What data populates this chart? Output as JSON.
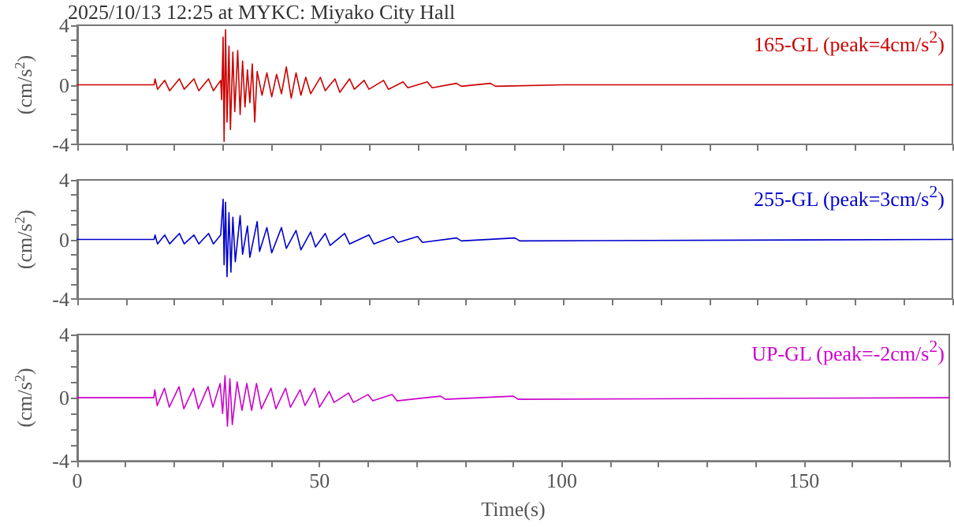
{
  "chart_data": [
    {
      "type": "line",
      "title": "2025/10/13 12:25 at MYKC: Miyako City Hall",
      "ylabel": "(cm/s$^{2}$)",
      "tick_labels": "y",
      "grid": false,
      "marker": "none",
      "line_style": "solid",
      "xlim": [
        0,
        180
      ],
      "xticks": [
        0,
        {
          "value": 10,
          "label": null
        },
        {
          "value": 20,
          "label": null
        },
        {
          "value": 30,
          "label": null
        },
        {
          "value": 40,
          "label": null
        },
        50,
        {
          "value": 60,
          "label": null
        },
        {
          "value": 70,
          "label": null
        },
        {
          "value": 80,
          "label": null
        },
        {
          "value": 90,
          "label": null
        },
        100,
        {
          "value": 110,
          "label": null
        },
        {
          "value": 120,
          "label": null
        },
        {
          "value": 130,
          "label": null
        },
        {
          "value": 140,
          "label": null
        },
        150,
        {
          "value": 160,
          "label": null
        },
        {
          "value": 170,
          "label": null
        },
        180
      ],
      "ylim": [
        -4,
        4
      ],
      "yticks": [
        -4,
        {
          "value": -3,
          "label": null
        },
        {
          "value": -2,
          "label": null
        },
        {
          "value": -1,
          "label": null
        },
        0,
        {
          "value": 1,
          "label": null
        },
        {
          "value": 2,
          "label": null
        },
        {
          "value": 3,
          "label": null
        },
        4
      ],
      "x": [
        0,
        15.8,
        16,
        16.5,
        18,
        19,
        21,
        22,
        24,
        25,
        27,
        28,
        29.5,
        29.7,
        30,
        30.2,
        30.5,
        30.8,
        31.2,
        31.5,
        32,
        32.4,
        33,
        33.5,
        34,
        34.5,
        35,
        35.5,
        36,
        36.5,
        37,
        38,
        39,
        40,
        41,
        42,
        43,
        44,
        45,
        46,
        47,
        48,
        50,
        51,
        53,
        54,
        56,
        57,
        59,
        60,
        63,
        64,
        67,
        68,
        72,
        73,
        78,
        79,
        85,
        86,
        100,
        101,
        130,
        131,
        180
      ],
      "series": [
        {
          "name": "165-GL (peak=4cm/s$^{2}$)",
          "color": "#cc0000",
          "values": [
            0,
            0,
            0.4,
            -0.3,
            0.3,
            -0.4,
            0.4,
            -0.3,
            0.4,
            -0.4,
            0.4,
            -0.4,
            0.3,
            -1.0,
            3.2,
            -3.8,
            3.7,
            -2.5,
            2.6,
            -3.0,
            2.2,
            -1.8,
            2.3,
            -2.0,
            1.6,
            -1.5,
            1.0,
            -1.2,
            1.4,
            -2.5,
            0.9,
            -0.7,
            0.8,
            -0.8,
            0.7,
            -0.6,
            1.2,
            -0.9,
            0.8,
            -0.7,
            0.5,
            -0.6,
            0.5,
            -0.4,
            0.4,
            -0.5,
            0.4,
            -0.3,
            0.3,
            -0.3,
            0.3,
            -0.3,
            0.2,
            -0.2,
            0.2,
            -0.2,
            0.1,
            -0.1,
            0.1,
            -0.1,
            0,
            0,
            0,
            0,
            0
          ]
        }
      ]
    },
    {
      "type": "line",
      "ylabel": "(cm/s$^{2}$)",
      "tick_labels": "y",
      "grid": false,
      "marker": "none",
      "line_style": "solid",
      "xlim": [
        0,
        180
      ],
      "xticks": [
        0,
        {
          "value": 10,
          "label": null
        },
        {
          "value": 20,
          "label": null
        },
        {
          "value": 30,
          "label": null
        },
        {
          "value": 40,
          "label": null
        },
        50,
        {
          "value": 60,
          "label": null
        },
        {
          "value": 70,
          "label": null
        },
        {
          "value": 80,
          "label": null
        },
        {
          "value": 90,
          "label": null
        },
        100,
        {
          "value": 110,
          "label": null
        },
        {
          "value": 120,
          "label": null
        },
        {
          "value": 130,
          "label": null
        },
        {
          "value": 140,
          "label": null
        },
        150,
        {
          "value": 160,
          "label": null
        },
        {
          "value": 170,
          "label": null
        },
        180
      ],
      "ylim": [
        -4,
        4
      ],
      "yticks": [
        -4,
        {
          "value": -3,
          "label": null
        },
        {
          "value": -2,
          "label": null
        },
        {
          "value": -1,
          "label": null
        },
        0,
        {
          "value": 1,
          "label": null
        },
        {
          "value": 2,
          "label": null
        },
        {
          "value": 3,
          "label": null
        },
        4
      ],
      "x": [
        0,
        15.8,
        16,
        16.5,
        18,
        19,
        21,
        22,
        24,
        25,
        27,
        28,
        29.5,
        30,
        30.2,
        30.5,
        30.8,
        31.2,
        31.6,
        32,
        32.5,
        33.5,
        34,
        35,
        35.5,
        37,
        37.5,
        39,
        40,
        42,
        43,
        45,
        46,
        48,
        49,
        51,
        52,
        55,
        56,
        60,
        61,
        65,
        66,
        70,
        71,
        78,
        79,
        90,
        91,
        180
      ],
      "series": [
        {
          "name": "255-GL (peak=3cm/s$^{2}$)",
          "color": "#0000cc",
          "values": [
            0,
            0,
            0.3,
            -0.3,
            0.3,
            -0.3,
            0.4,
            -0.3,
            0.3,
            -0.3,
            0.4,
            -0.3,
            0.3,
            2.7,
            -1.7,
            2.5,
            -2.5,
            1.8,
            -2.2,
            1.5,
            -1.5,
            1.6,
            -1.0,
            0.9,
            -1.2,
            1.2,
            -0.8,
            0.8,
            -0.9,
            0.8,
            -0.6,
            0.6,
            -0.7,
            0.5,
            -0.5,
            0.4,
            -0.4,
            0.4,
            -0.3,
            0.3,
            -0.3,
            0.2,
            -0.2,
            0.2,
            -0.2,
            0.1,
            -0.1,
            0.1,
            -0.1,
            0
          ]
        }
      ]
    },
    {
      "type": "line",
      "ylabel": "(cm/s$^{2}$)",
      "xlabel": "Time(s)",
      "grid": false,
      "marker": "none",
      "line_style": "solid",
      "xlim": [
        0,
        180
      ],
      "xticks": [
        0,
        {
          "value": 10,
          "label": null
        },
        {
          "value": 20,
          "label": null
        },
        {
          "value": 30,
          "label": null
        },
        {
          "value": 40,
          "label": null
        },
        50,
        {
          "value": 60,
          "label": null
        },
        {
          "value": 70,
          "label": null
        },
        {
          "value": 80,
          "label": null
        },
        {
          "value": 90,
          "label": null
        },
        100,
        {
          "value": 110,
          "label": null
        },
        {
          "value": 120,
          "label": null
        },
        {
          "value": 130,
          "label": null
        },
        {
          "value": 140,
          "label": null
        },
        150,
        {
          "value": 160,
          "label": null
        },
        {
          "value": 170,
          "label": null
        },
        {
          "value": 180,
          "label": null
        }
      ],
      "ylim": [
        -4,
        4
      ],
      "yticks": [
        -4,
        {
          "value": -3,
          "label": null
        },
        {
          "value": -2,
          "label": null
        },
        {
          "value": -1,
          "label": null
        },
        0,
        {
          "value": 1,
          "label": null
        },
        {
          "value": 2,
          "label": null
        },
        {
          "value": 3,
          "label": null
        },
        4
      ],
      "x": [
        0,
        15.8,
        16,
        16.5,
        18,
        19,
        21,
        22,
        24,
        25,
        27,
        28,
        29.5,
        30,
        30.5,
        31,
        31.5,
        32,
        33,
        34,
        35,
        36,
        37,
        38,
        40,
        41,
        43,
        44,
        46,
        47,
        49,
        50,
        52,
        53,
        56,
        57,
        60,
        61,
        65,
        66,
        75,
        76,
        90,
        91,
        180
      ],
      "series": [
        {
          "name": "UP-GL (peak=-2cm/s$^{2}$)",
          "color": "#cc00cc",
          "values": [
            0,
            0,
            0.5,
            -0.5,
            0.6,
            -0.6,
            0.7,
            -0.7,
            0.6,
            -0.7,
            0.7,
            -0.6,
            0.9,
            -1.0,
            1.4,
            -1.8,
            1.2,
            -1.7,
            1.0,
            -0.8,
            0.9,
            -0.8,
            0.9,
            -0.7,
            0.6,
            -0.7,
            0.6,
            -0.6,
            0.5,
            -0.5,
            0.6,
            -0.6,
            0.4,
            -0.3,
            0.3,
            -0.3,
            0.2,
            -0.2,
            0.2,
            -0.2,
            0.1,
            -0.1,
            0.1,
            -0.1,
            0
          ]
        }
      ]
    }
  ]
}
